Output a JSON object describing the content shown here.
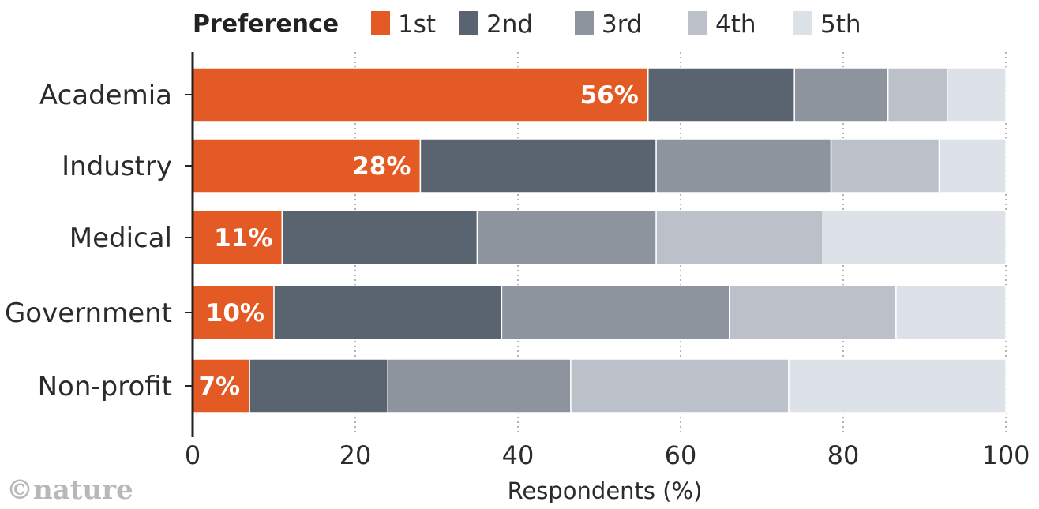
{
  "chart_data": {
    "type": "bar",
    "orientation": "horizontal",
    "stacked": true,
    "legend_title": "Preference",
    "legend_position": "top",
    "xlabel": "Respondents (%)",
    "xlim": [
      0,
      100
    ],
    "xticks": [
      0,
      20,
      40,
      60,
      80,
      100
    ],
    "grid": "vertical dotted",
    "categories": [
      "Academia",
      "Industry",
      "Medical",
      "Government",
      "Non-profit"
    ],
    "series": [
      {
        "name": "1st",
        "color": "#e35a24",
        "values": [
          56,
          28,
          11,
          10,
          7
        ]
      },
      {
        "name": "2nd",
        "color": "#5a6370",
        "values": [
          18,
          29,
          24,
          28,
          17
        ]
      },
      {
        "name": "3rd",
        "color": "#8d949d",
        "values": [
          11.5,
          21.5,
          22,
          28,
          22.5
        ]
      },
      {
        "name": "4th",
        "color": "#bcc0c8",
        "values": [
          7.3,
          13.3,
          20.5,
          20.5,
          26.8
        ]
      },
      {
        "name": "5th",
        "color": "#dde1e8",
        "values": [
          7.2,
          8.2,
          22.5,
          13.5,
          26.7
        ]
      }
    ],
    "data_labels": [
      "56%",
      "28%",
      "11%",
      "10%",
      "7%"
    ]
  },
  "credit": "©nature"
}
